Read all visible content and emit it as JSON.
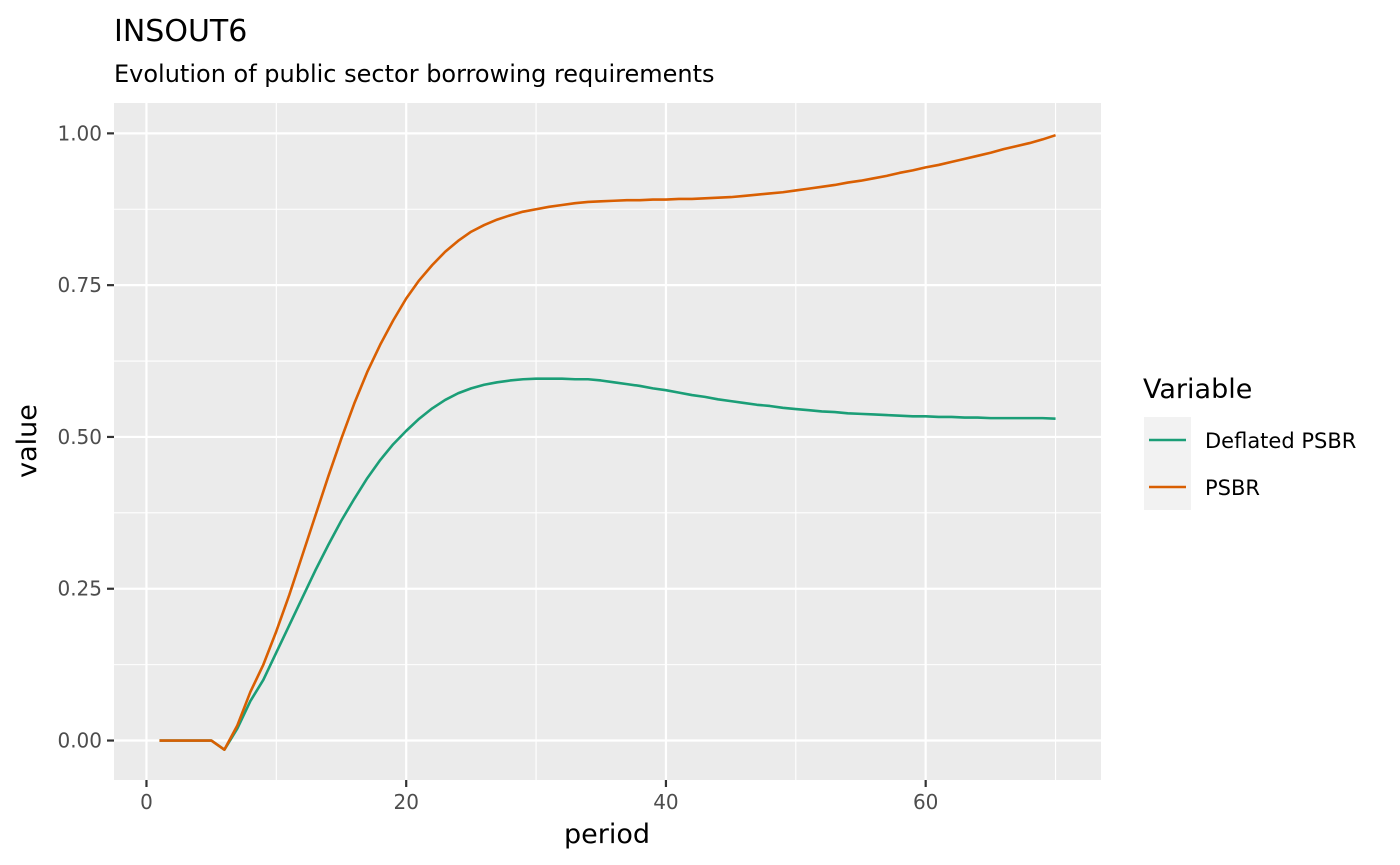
{
  "chart_data": {
    "type": "line",
    "title": "INSOUT6",
    "subtitle": "Evolution of public sector borrowing requirements",
    "xlabel": "period",
    "ylabel": "value",
    "xlim": [
      -2.5,
      73.5
    ],
    "ylim": [
      -0.065,
      1.05
    ],
    "x_ticks": [
      0,
      20,
      40,
      60
    ],
    "x_tick_labels": [
      "0",
      "20",
      "40",
      "60"
    ],
    "y_ticks": [
      0,
      0.25,
      0.5,
      0.75,
      1.0
    ],
    "y_tick_labels": [
      "0.00",
      "0.25",
      "0.50",
      "0.75",
      "1.00"
    ],
    "grid": true,
    "legend": {
      "title": "Variable",
      "position": "right"
    },
    "series": [
      {
        "name": "Deflated PSBR",
        "color": "#1b9e77",
        "x": [
          1,
          2,
          3,
          4,
          5,
          6,
          7,
          8,
          9,
          10,
          11,
          12,
          13,
          14,
          15,
          16,
          17,
          18,
          19,
          20,
          21,
          22,
          23,
          24,
          25,
          26,
          27,
          28,
          29,
          30,
          31,
          32,
          33,
          34,
          35,
          36,
          37,
          38,
          39,
          40,
          41,
          42,
          43,
          44,
          45,
          46,
          47,
          48,
          49,
          50,
          51,
          52,
          53,
          54,
          55,
          56,
          57,
          58,
          59,
          60,
          61,
          62,
          63,
          64,
          65,
          66,
          67,
          68,
          69,
          70
        ],
        "values": [
          0,
          0,
          0,
          0,
          0,
          -0.015,
          0.02,
          0.065,
          0.1,
          0.145,
          0.19,
          0.235,
          0.28,
          0.322,
          0.362,
          0.398,
          0.432,
          0.462,
          0.488,
          0.51,
          0.53,
          0.547,
          0.561,
          0.572,
          0.58,
          0.586,
          0.59,
          0.593,
          0.595,
          0.596,
          0.596,
          0.596,
          0.595,
          0.595,
          0.593,
          0.59,
          0.587,
          0.584,
          0.58,
          0.577,
          0.573,
          0.569,
          0.566,
          0.562,
          0.559,
          0.556,
          0.553,
          0.551,
          0.548,
          0.546,
          0.544,
          0.542,
          0.541,
          0.539,
          0.538,
          0.537,
          0.536,
          0.535,
          0.534,
          0.534,
          0.533,
          0.533,
          0.532,
          0.532,
          0.531,
          0.531,
          0.531,
          0.531,
          0.531,
          0.53
        ]
      },
      {
        "name": "PSBR",
        "color": "#d95f02",
        "x": [
          1,
          2,
          3,
          4,
          5,
          6,
          7,
          8,
          9,
          10,
          11,
          12,
          13,
          14,
          15,
          16,
          17,
          18,
          19,
          20,
          21,
          22,
          23,
          24,
          25,
          26,
          27,
          28,
          29,
          30,
          31,
          32,
          33,
          34,
          35,
          36,
          37,
          38,
          39,
          40,
          41,
          42,
          43,
          44,
          45,
          46,
          47,
          48,
          49,
          50,
          51,
          52,
          53,
          54,
          55,
          56,
          57,
          58,
          59,
          60,
          61,
          62,
          63,
          64,
          65,
          66,
          67,
          68,
          69,
          70
        ],
        "values": [
          0,
          0,
          0,
          0,
          0,
          -0.015,
          0.025,
          0.08,
          0.125,
          0.18,
          0.24,
          0.305,
          0.37,
          0.435,
          0.497,
          0.555,
          0.607,
          0.652,
          0.692,
          0.728,
          0.758,
          0.783,
          0.805,
          0.823,
          0.838,
          0.849,
          0.858,
          0.865,
          0.871,
          0.875,
          0.879,
          0.882,
          0.885,
          0.887,
          0.888,
          0.889,
          0.89,
          0.89,
          0.891,
          0.891,
          0.892,
          0.892,
          0.893,
          0.894,
          0.895,
          0.897,
          0.899,
          0.901,
          0.903,
          0.906,
          0.909,
          0.912,
          0.915,
          0.919,
          0.922,
          0.926,
          0.93,
          0.935,
          0.939,
          0.944,
          0.948,
          0.953,
          0.958,
          0.963,
          0.968,
          0.974,
          0.979,
          0.984,
          0.99,
          0.997
        ]
      }
    ]
  }
}
